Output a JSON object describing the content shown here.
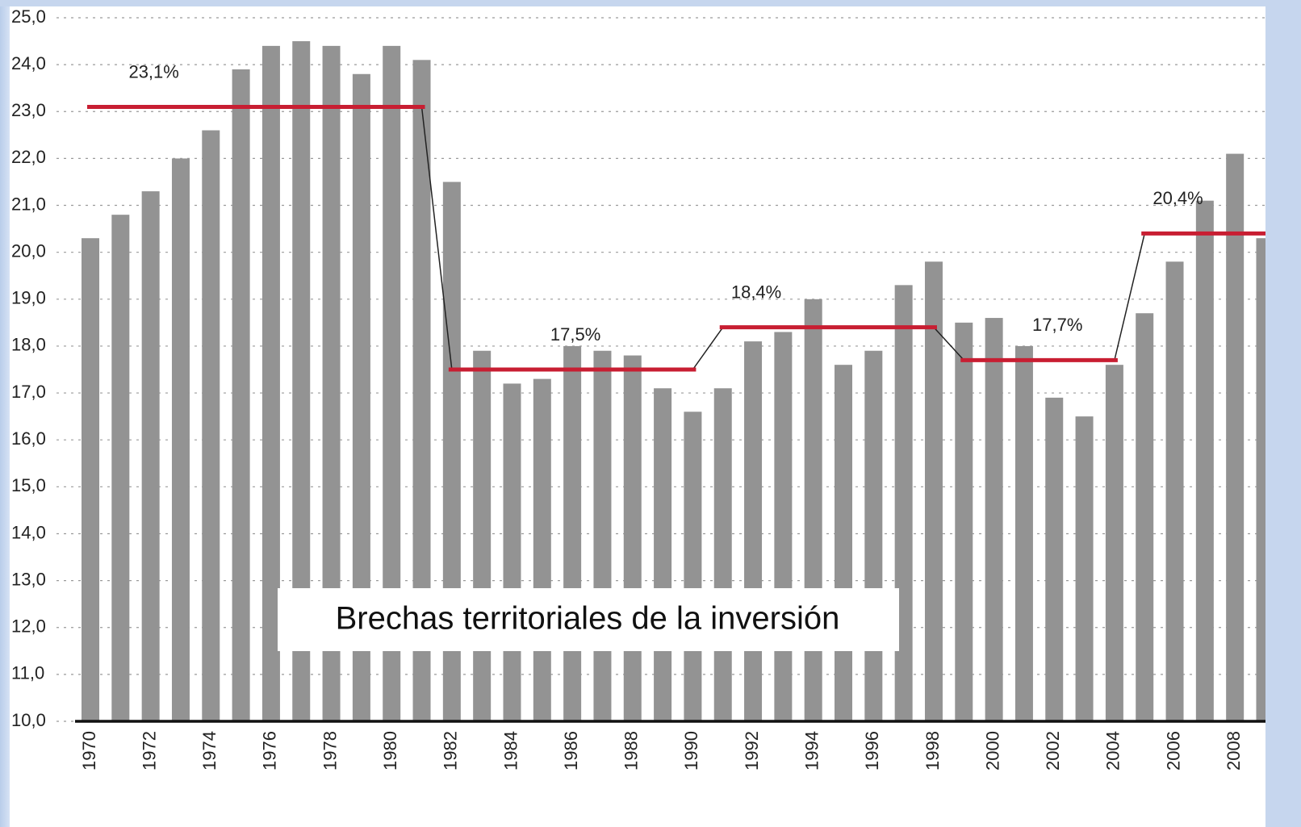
{
  "chart_data": {
    "type": "bar",
    "annotation": "Brechas territoriales de la inversión",
    "categories": [
      "1970",
      null,
      "1972",
      null,
      "1974",
      null,
      "1976",
      null,
      "1978",
      null,
      "1980",
      null,
      "1982",
      null,
      "1984",
      null,
      "1986",
      null,
      "1988",
      null,
      "1990",
      null,
      "1992",
      null,
      "1994",
      null,
      "1996",
      null,
      "1998",
      null,
      "2000",
      null,
      "2002",
      null,
      "2004",
      null,
      "2006",
      null,
      "2008",
      null
    ],
    "series": [
      {
        "type": "bar",
        "color": "#939393",
        "values": [
          20.3,
          20.8,
          21.3,
          22.0,
          22.6,
          23.9,
          24.4,
          24.5,
          24.4,
          23.8,
          24.4,
          24.1,
          21.5,
          17.9,
          17.2,
          17.3,
          18.0,
          17.9,
          17.8,
          17.1,
          16.6,
          17.1,
          18.1,
          18.3,
          19.0,
          17.6,
          17.9,
          19.3,
          19.8,
          18.5,
          18.6,
          18.0,
          16.9,
          16.5,
          17.6,
          18.7,
          19.8,
          21.1,
          22.1,
          20.3
        ]
      },
      {
        "type": "line",
        "color": "#c81e32",
        "connector_color": "#222222",
        "values": [
          23.1,
          23.1,
          23.1,
          23.1,
          23.1,
          23.1,
          23.1,
          23.1,
          23.1,
          23.1,
          23.1,
          23.1,
          17.5,
          17.5,
          17.5,
          17.5,
          17.5,
          17.5,
          17.5,
          17.5,
          17.5,
          18.4,
          18.4,
          18.4,
          18.4,
          18.4,
          18.4,
          18.4,
          18.4,
          17.7,
          17.7,
          17.7,
          17.7,
          17.7,
          17.7,
          20.4,
          20.4,
          20.4,
          20.4,
          20.4
        ],
        "value_labels": [
          null,
          null,
          "23,1%",
          null,
          null,
          null,
          null,
          null,
          null,
          null,
          null,
          null,
          null,
          null,
          null,
          null,
          "17,5%",
          null,
          null,
          null,
          null,
          null,
          "18,4%",
          null,
          null,
          null,
          null,
          null,
          null,
          null,
          null,
          null,
          "17,7%",
          null,
          null,
          null,
          "20,4%",
          null,
          null,
          null
        ]
      }
    ],
    "ylim": [
      10,
      25
    ],
    "yticks": [
      {
        "value": 10,
        "label": "10,0"
      },
      {
        "value": 11,
        "label": "11,0"
      },
      {
        "value": 12,
        "label": "12,0"
      },
      {
        "value": 13,
        "label": "13,0"
      },
      {
        "value": 14,
        "label": "14,0"
      },
      {
        "value": 15,
        "label": "15,0"
      },
      {
        "value": 16,
        "label": "16,0"
      },
      {
        "value": 17,
        "label": "17,0"
      },
      {
        "value": 18,
        "label": "18,0"
      },
      {
        "value": 19,
        "label": "19,0"
      },
      {
        "value": 20,
        "label": "20,0"
      },
      {
        "value": 21,
        "label": "21,0"
      },
      {
        "value": 22,
        "label": "22,0"
      },
      {
        "value": 23,
        "label": "23,0"
      },
      {
        "value": 24,
        "label": "24,0"
      },
      {
        "value": 25,
        "label": "25,0"
      }
    ],
    "grid": true
  }
}
